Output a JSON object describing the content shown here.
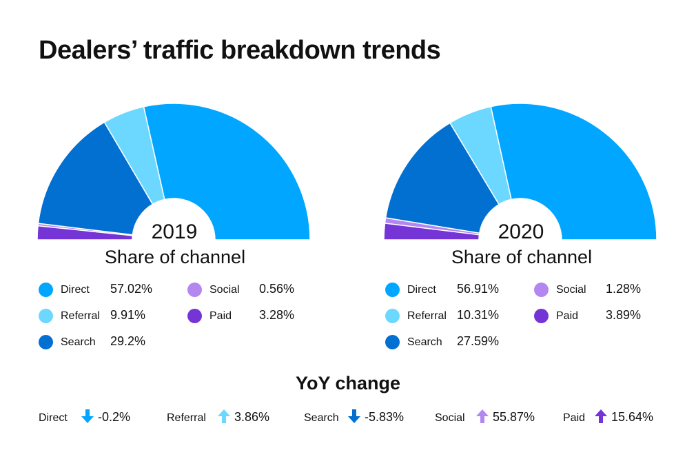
{
  "title": "Dealers’ traffic breakdown trends",
  "colors": {
    "Direct": "#00a6ff",
    "Referral": "#6dd8ff",
    "Search": "#0270d0",
    "Social": "#b486f0",
    "Paid": "#7535d6"
  },
  "chart_data": [
    {
      "type": "pie",
      "style": "half-donut",
      "center_label": "2019",
      "subtitle": "Share of channel",
      "categories": [
        "Direct",
        "Referral",
        "Search",
        "Social",
        "Paid"
      ],
      "values": [
        57.02,
        9.91,
        29.2,
        0.56,
        3.28
      ],
      "value_labels": [
        "57.02%",
        "9.91%",
        "29.2%",
        "0.56%",
        "3.28%"
      ]
    },
    {
      "type": "pie",
      "style": "half-donut",
      "center_label": "2020",
      "subtitle": "Share of channel",
      "categories": [
        "Direct",
        "Referral",
        "Search",
        "Social",
        "Paid"
      ],
      "values": [
        56.91,
        10.31,
        27.59,
        1.28,
        3.89
      ],
      "value_labels": [
        "56.91%",
        "10.31%",
        "27.59%",
        "1.28%",
        "3.89%"
      ]
    }
  ],
  "yoy": {
    "title": "YoY change",
    "items": [
      {
        "name": "Direct",
        "direction": "down",
        "value": "-0.2%"
      },
      {
        "name": "Referral",
        "direction": "up",
        "value": "3.86%"
      },
      {
        "name": "Search",
        "direction": "down",
        "value": "-5.83%"
      },
      {
        "name": "Social",
        "direction": "up",
        "value": "55.87%"
      },
      {
        "name": "Paid",
        "direction": "up",
        "value": "15.64%"
      }
    ]
  }
}
